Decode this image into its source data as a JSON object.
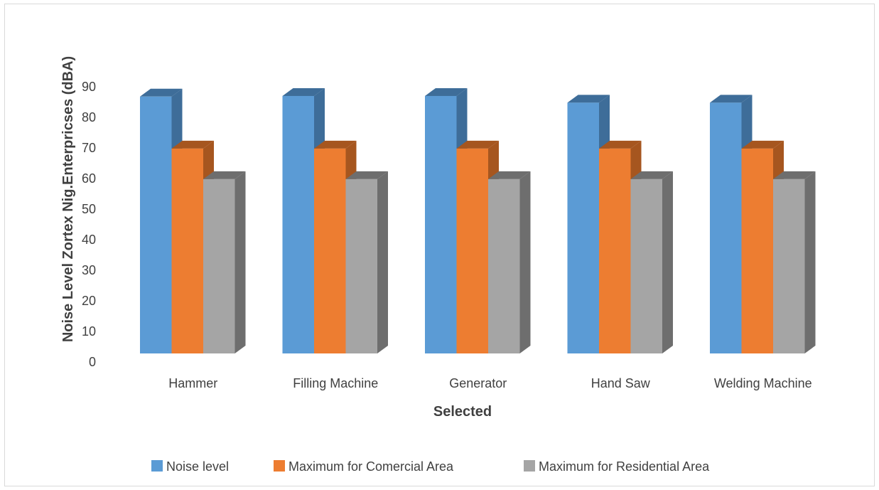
{
  "chart_data": {
    "type": "bar",
    "categories": [
      "Hammer",
      "Filling Machine",
      "Generator",
      "Hand Saw",
      "Welding Machine"
    ],
    "series": [
      {
        "name": "Noise level",
        "values": [
          84,
          84.2,
          84.2,
          82,
          82
        ],
        "color": "#5b9bd5",
        "side": "#3e6d99"
      },
      {
        "name": "Maximum for Comercial Area",
        "values": [
          67,
          67,
          67,
          67,
          67
        ],
        "color": "#ed7d31",
        "side": "#a6561f"
      },
      {
        "name": "Maximum for Residential Area",
        "values": [
          57,
          57,
          57,
          57,
          57
        ],
        "color": "#a5a5a5",
        "side": "#6e6e6e"
      }
    ],
    "xlabel": "Selected",
    "ylabel": "Noise Level Zortex Nig.Enterpricses  (dBA)",
    "ylim": [
      0,
      90
    ],
    "yticks": [
      "0",
      "10",
      "20",
      "30",
      "40",
      "50",
      "60",
      "70",
      "80",
      "90"
    ],
    "grid": false,
    "legend_position": "bottom",
    "style": "3d-clustered-column"
  }
}
